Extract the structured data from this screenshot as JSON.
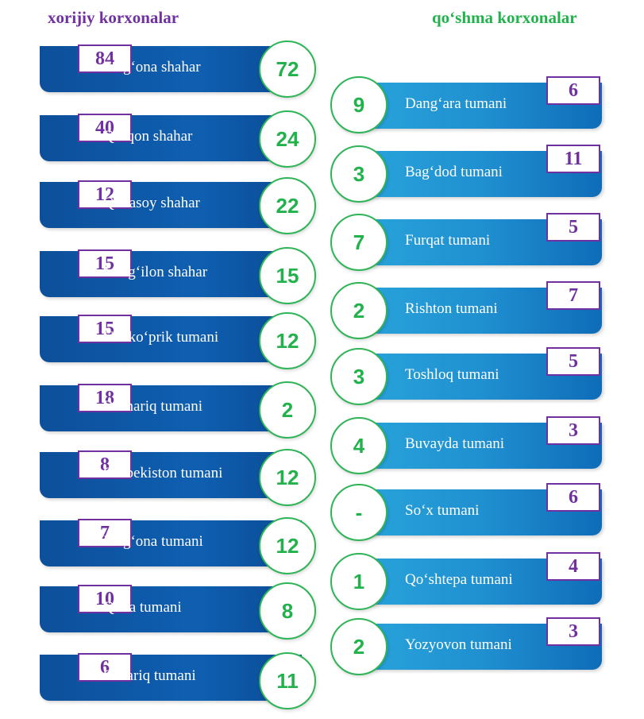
{
  "headers": {
    "foreign": "xorijiy korxonalar",
    "joint": "qo‘shma korxonalar"
  },
  "colors": {
    "foreign_accent": "#7030a0",
    "joint_accent": "#22b24c",
    "left_bar": "#0f5fb1",
    "right_bar": "#1f8fd0"
  },
  "left_items": [
    {
      "name": "Farg‘ona shahar",
      "foreign": "84",
      "joint": "72"
    },
    {
      "name": "Qo‘qon shahar",
      "foreign": "40",
      "joint": "24"
    },
    {
      "name": "Quvasoy shahar",
      "foreign": "12",
      "joint": "22"
    },
    {
      "name": "Marg‘ilon shahar",
      "foreign": "15",
      "joint": "15"
    },
    {
      "name": "Uchko‘prik tumani",
      "foreign": "15",
      "joint": "12"
    },
    {
      "name": "Beshariq tumani",
      "foreign": "18",
      "joint": "2"
    },
    {
      "name": "O‘zbekiston tumani",
      "foreign": "8",
      "joint": "12"
    },
    {
      "name": "Farg‘ona tumani",
      "foreign": "7",
      "joint": "12"
    },
    {
      "name": "Quva tumani",
      "foreign": "10",
      "joint": "8"
    },
    {
      "name": "Oltiariq tumani",
      "foreign": "6",
      "joint": "11"
    }
  ],
  "right_items": [
    {
      "name": "Dang‘ara tumani",
      "joint": "9",
      "foreign": "6"
    },
    {
      "name": "Bag‘dod tumani",
      "joint": "3",
      "foreign": "11"
    },
    {
      "name": "Furqat tumani",
      "joint": "7",
      "foreign": "5"
    },
    {
      "name": "Rishton tumani",
      "joint": "2",
      "foreign": "7"
    },
    {
      "name": "Toshloq tumani",
      "joint": "3",
      "foreign": "5"
    },
    {
      "name": "Buvayda tumani",
      "joint": "4",
      "foreign": "3"
    },
    {
      "name": "So‘x tumani",
      "joint": "-",
      "foreign": "6"
    },
    {
      "name": "Qo‘shtepa tumani",
      "joint": "1",
      "foreign": "4"
    },
    {
      "name": "Yozyovon tumani",
      "joint": "2",
      "foreign": "3"
    }
  ]
}
